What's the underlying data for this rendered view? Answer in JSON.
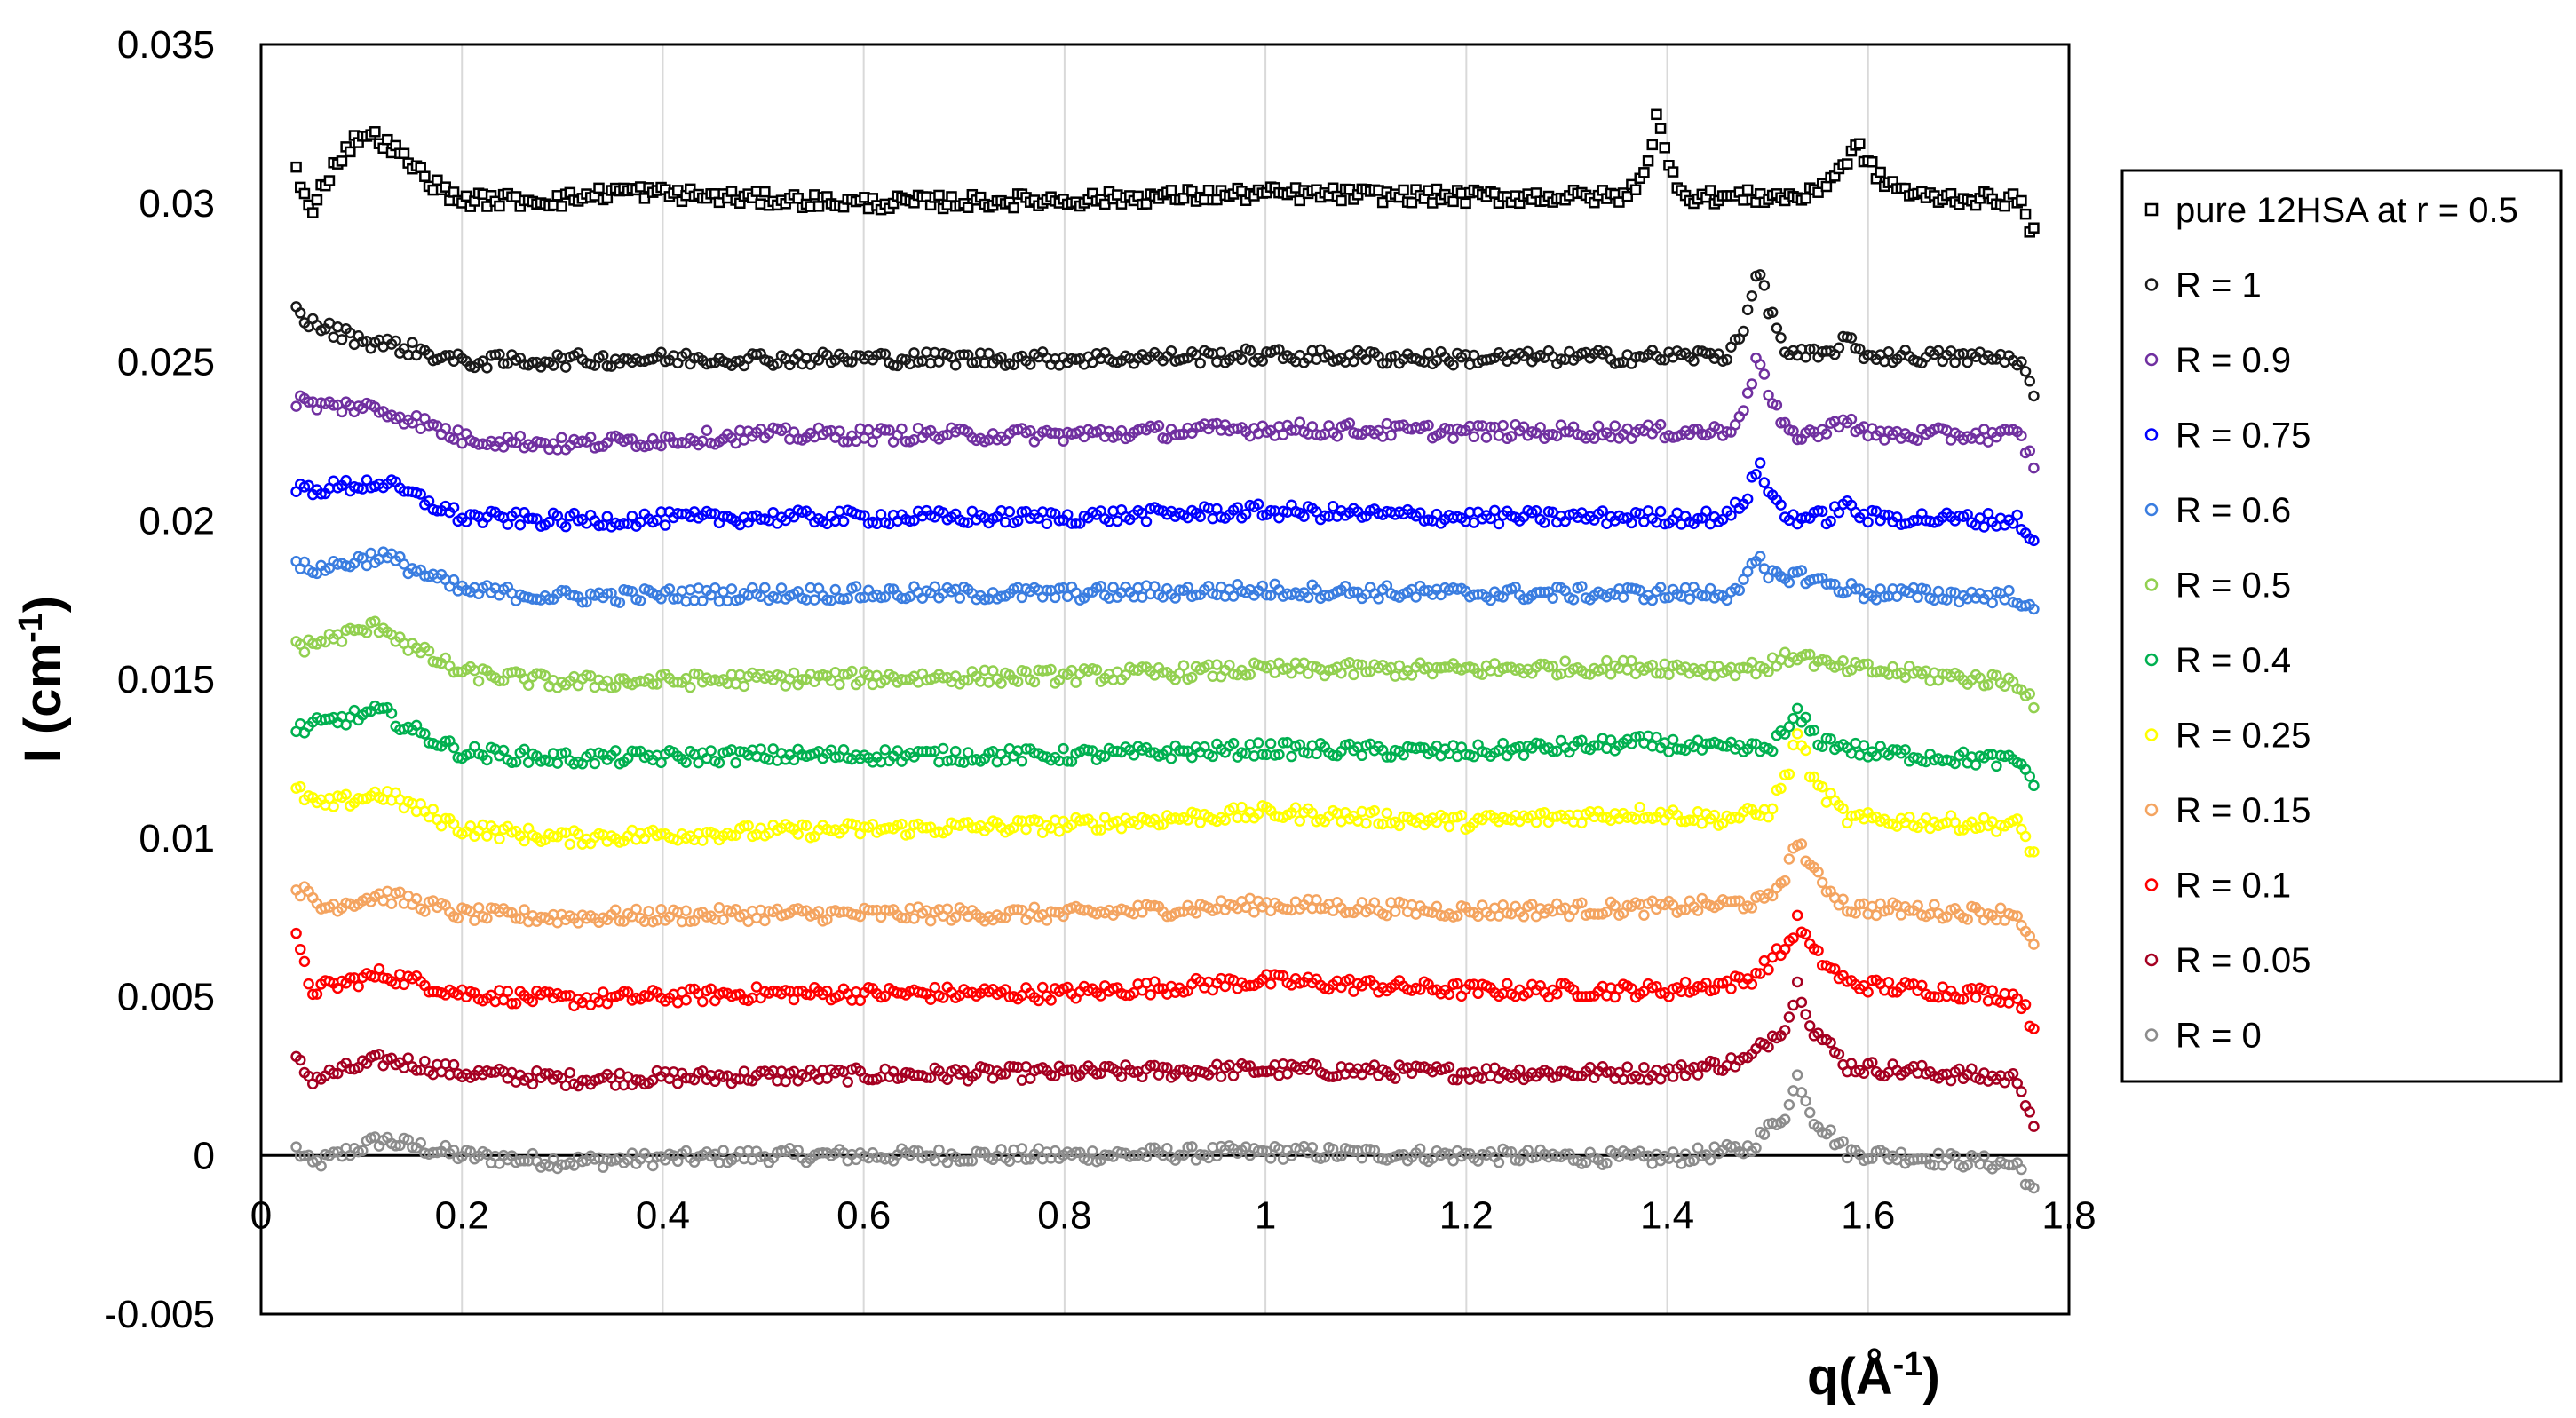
{
  "chart_data": {
    "type": "scatter",
    "title": "",
    "xlabel": {
      "base": "q(Å",
      "sup": "-1",
      "close": ")"
    },
    "ylabel": {
      "base": "I (cm",
      "sup": "-1",
      "close": ")"
    },
    "xlim": [
      0,
      1.8
    ],
    "ylim": [
      -0.005,
      0.035
    ],
    "x_ticks": [
      0,
      0.2,
      0.4,
      0.6,
      0.8,
      1,
      1.2,
      1.4,
      1.6,
      1.8
    ],
    "x_tick_labels": [
      "0",
      "0.2",
      "0.4",
      "0.6",
      "0.8",
      "1",
      "1.2",
      "1.4",
      "1.6",
      "1.8"
    ],
    "y_ticks": [
      -0.005,
      0,
      0.005,
      0.01,
      0.015,
      0.02,
      0.025,
      0.03,
      0.035
    ],
    "y_tick_labels": [
      "-0.005",
      "0",
      "0.005",
      "0.01",
      "0.015",
      "0.02",
      "0.025",
      "0.03",
      "0.035"
    ],
    "grid": "vertical",
    "legend_position": "right",
    "q_range": [
      0.035,
      1.765
    ],
    "series": [
      {
        "name": "pure 12HSA at r = 0.5",
        "marker": "square",
        "color": "#000000",
        "baseline": 0.0302,
        "points": [
          [
            0.035,
            0.031
          ],
          [
            0.04,
            0.0303
          ],
          [
            0.05,
            0.0298
          ],
          [
            0.06,
            0.0305
          ],
          [
            0.08,
            0.0315
          ],
          [
            0.1,
            0.0322
          ],
          [
            0.12,
            0.032
          ],
          [
            0.15,
            0.0312
          ],
          [
            0.18,
            0.0304
          ],
          [
            0.2,
            0.0301
          ],
          [
            0.3,
            0.0301
          ],
          [
            0.36,
            0.0304
          ],
          [
            0.45,
            0.0302
          ],
          [
            0.6,
            0.03
          ],
          [
            0.8,
            0.0301
          ],
          [
            1.0,
            0.0303
          ],
          [
            1.2,
            0.0302
          ],
          [
            1.36,
            0.0302
          ],
          [
            1.38,
            0.0312
          ],
          [
            1.39,
            0.0328
          ],
          [
            1.4,
            0.0312
          ],
          [
            1.42,
            0.0302
          ],
          [
            1.54,
            0.0302
          ],
          [
            1.57,
            0.031
          ],
          [
            1.59,
            0.0318
          ],
          [
            1.61,
            0.0308
          ],
          [
            1.65,
            0.0302
          ],
          [
            1.75,
            0.0301
          ],
          [
            1.765,
            0.029
          ]
        ]
      },
      {
        "name": "R = 1",
        "marker": "circle",
        "color": "#1a1a1a",
        "baseline": 0.0251,
        "points": [
          [
            0.035,
            0.0266
          ],
          [
            0.05,
            0.0262
          ],
          [
            0.1,
            0.0257
          ],
          [
            0.15,
            0.0254
          ],
          [
            0.2,
            0.025
          ],
          [
            0.4,
            0.0251
          ],
          [
            0.8,
            0.0251
          ],
          [
            1.0,
            0.0252
          ],
          [
            1.2,
            0.0251
          ],
          [
            1.46,
            0.0252
          ],
          [
            1.48,
            0.0264
          ],
          [
            1.49,
            0.028
          ],
          [
            1.5,
            0.0268
          ],
          [
            1.52,
            0.0252
          ],
          [
            1.56,
            0.0252
          ],
          [
            1.575,
            0.0257
          ],
          [
            1.6,
            0.0252
          ],
          [
            1.75,
            0.0251
          ],
          [
            1.765,
            0.024
          ]
        ]
      },
      {
        "name": "R = 0.9",
        "marker": "circle",
        "color": "#7030a0",
        "baseline": 0.0227,
        "points": [
          [
            0.035,
            0.0238
          ],
          [
            0.06,
            0.0236
          ],
          [
            0.1,
            0.0236
          ],
          [
            0.15,
            0.0232
          ],
          [
            0.2,
            0.0226
          ],
          [
            0.3,
            0.0224
          ],
          [
            0.5,
            0.0227
          ],
          [
            0.8,
            0.0227
          ],
          [
            1.0,
            0.0229
          ],
          [
            1.2,
            0.0228
          ],
          [
            1.46,
            0.0228
          ],
          [
            1.48,
            0.0238
          ],
          [
            1.49,
            0.0254
          ],
          [
            1.5,
            0.024
          ],
          [
            1.52,
            0.0227
          ],
          [
            1.56,
            0.0228
          ],
          [
            1.575,
            0.0233
          ],
          [
            1.6,
            0.0227
          ],
          [
            1.75,
            0.0227
          ],
          [
            1.765,
            0.0218
          ]
        ]
      },
      {
        "name": "R = 0.75",
        "marker": "circle",
        "color": "#0000ff",
        "baseline": 0.0201,
        "points": [
          [
            0.035,
            0.021
          ],
          [
            0.06,
            0.021
          ],
          [
            0.12,
            0.0212
          ],
          [
            0.15,
            0.0208
          ],
          [
            0.2,
            0.0201
          ],
          [
            0.3,
            0.02
          ],
          [
            0.5,
            0.0201
          ],
          [
            0.8,
            0.0201
          ],
          [
            1.0,
            0.0203
          ],
          [
            1.2,
            0.0201
          ],
          [
            1.46,
            0.0201
          ],
          [
            1.48,
            0.0208
          ],
          [
            1.49,
            0.0218
          ],
          [
            1.5,
            0.021
          ],
          [
            1.52,
            0.0201
          ],
          [
            1.56,
            0.0201
          ],
          [
            1.575,
            0.0205
          ],
          [
            1.6,
            0.0201
          ],
          [
            1.75,
            0.02
          ],
          [
            1.765,
            0.0193
          ]
        ]
      },
      {
        "name": "R = 0.6",
        "marker": "circle",
        "color": "#3a7de0",
        "baseline": 0.0177,
        "points": [
          [
            0.035,
            0.0185
          ],
          [
            0.06,
            0.0185
          ],
          [
            0.12,
            0.0189
          ],
          [
            0.15,
            0.0185
          ],
          [
            0.2,
            0.0178
          ],
          [
            0.3,
            0.0176
          ],
          [
            0.5,
            0.0177
          ],
          [
            0.8,
            0.0177
          ],
          [
            1.0,
            0.0178
          ],
          [
            1.2,
            0.0177
          ],
          [
            1.46,
            0.0177
          ],
          [
            1.48,
            0.0182
          ],
          [
            1.49,
            0.0188
          ],
          [
            1.5,
            0.0182
          ],
          [
            1.53,
            0.0183
          ],
          [
            1.56,
            0.018
          ],
          [
            1.6,
            0.0177
          ],
          [
            1.75,
            0.0176
          ],
          [
            1.765,
            0.017
          ]
        ]
      },
      {
        "name": "R = 0.5",
        "marker": "circle",
        "color": "#92d050",
        "baseline": 0.0151,
        "points": [
          [
            0.035,
            0.016
          ],
          [
            0.06,
            0.0162
          ],
          [
            0.12,
            0.0167
          ],
          [
            0.15,
            0.016
          ],
          [
            0.2,
            0.0152
          ],
          [
            0.3,
            0.0149
          ],
          [
            0.5,
            0.015
          ],
          [
            0.8,
            0.0151
          ],
          [
            1.0,
            0.0153
          ],
          [
            1.2,
            0.0153
          ],
          [
            1.38,
            0.0154
          ],
          [
            1.45,
            0.0153
          ],
          [
            1.5,
            0.0154
          ],
          [
            1.53,
            0.0158
          ],
          [
            1.56,
            0.0154
          ],
          [
            1.75,
            0.0149
          ],
          [
            1.765,
            0.0143
          ]
        ]
      },
      {
        "name": "R = 0.4",
        "marker": "circle",
        "color": "#00b050",
        "baseline": 0.0126,
        "points": [
          [
            0.035,
            0.0134
          ],
          [
            0.06,
            0.0136
          ],
          [
            0.12,
            0.014
          ],
          [
            0.15,
            0.0134
          ],
          [
            0.2,
            0.0127
          ],
          [
            0.3,
            0.0125
          ],
          [
            0.5,
            0.0126
          ],
          [
            0.8,
            0.0126
          ],
          [
            1.0,
            0.0128
          ],
          [
            1.2,
            0.0127
          ],
          [
            1.38,
            0.013
          ],
          [
            1.45,
            0.0128
          ],
          [
            1.5,
            0.0128
          ],
          [
            1.52,
            0.0134
          ],
          [
            1.53,
            0.0139
          ],
          [
            1.55,
            0.0131
          ],
          [
            1.6,
            0.0127
          ],
          [
            1.75,
            0.0124
          ],
          [
            1.765,
            0.0118
          ]
        ]
      },
      {
        "name": "R = 0.25",
        "marker": "circle",
        "color": "#ffff00",
        "baseline": 0.0104,
        "points": [
          [
            0.035,
            0.0115
          ],
          [
            0.06,
            0.011
          ],
          [
            0.12,
            0.0114
          ],
          [
            0.15,
            0.011
          ],
          [
            0.2,
            0.0103
          ],
          [
            0.3,
            0.01
          ],
          [
            0.5,
            0.0102
          ],
          [
            0.8,
            0.0104
          ],
          [
            1.0,
            0.0108
          ],
          [
            1.2,
            0.0105
          ],
          [
            1.38,
            0.0108
          ],
          [
            1.45,
            0.0106
          ],
          [
            1.5,
            0.0108
          ],
          [
            1.52,
            0.012
          ],
          [
            1.53,
            0.0134
          ],
          [
            1.545,
            0.0118
          ],
          [
            1.58,
            0.0106
          ],
          [
            1.75,
            0.0104
          ],
          [
            1.765,
            0.0095
          ]
        ]
      },
      {
        "name": "R = 0.15",
        "marker": "circle",
        "color": "#f4a460",
        "baseline": 0.0077,
        "points": [
          [
            0.035,
            0.0085
          ],
          [
            0.06,
            0.0078
          ],
          [
            0.12,
            0.0082
          ],
          [
            0.15,
            0.008
          ],
          [
            0.2,
            0.0076
          ],
          [
            0.3,
            0.0075
          ],
          [
            0.5,
            0.0076
          ],
          [
            0.8,
            0.0076
          ],
          [
            1.0,
            0.0079
          ],
          [
            1.2,
            0.0077
          ],
          [
            1.4,
            0.0078
          ],
          [
            1.5,
            0.008
          ],
          [
            1.52,
            0.009
          ],
          [
            1.53,
            0.01
          ],
          [
            1.545,
            0.0089
          ],
          [
            1.58,
            0.0078
          ],
          [
            1.75,
            0.0076
          ],
          [
            1.765,
            0.0065
          ]
        ]
      },
      {
        "name": "R = 0.1",
        "marker": "circle",
        "color": "#ff0000",
        "baseline": 0.0052,
        "points": [
          [
            0.035,
            0.0068
          ],
          [
            0.05,
            0.0052
          ],
          [
            0.12,
            0.0057
          ],
          [
            0.15,
            0.0055
          ],
          [
            0.2,
            0.0051
          ],
          [
            0.3,
            0.0049
          ],
          [
            0.5,
            0.0051
          ],
          [
            0.8,
            0.0051
          ],
          [
            1.0,
            0.0055
          ],
          [
            1.2,
            0.0052
          ],
          [
            1.4,
            0.0052
          ],
          [
            1.48,
            0.0055
          ],
          [
            1.52,
            0.0066
          ],
          [
            1.53,
            0.0074
          ],
          [
            1.545,
            0.0064
          ],
          [
            1.58,
            0.0054
          ],
          [
            1.75,
            0.005
          ],
          [
            1.765,
            0.004
          ]
        ]
      },
      {
        "name": "R = 0.05",
        "marker": "circle",
        "color": "#a50021",
        "baseline": 0.0026,
        "points": [
          [
            0.035,
            0.003
          ],
          [
            0.05,
            0.0024
          ],
          [
            0.12,
            0.003
          ],
          [
            0.15,
            0.0029
          ],
          [
            0.2,
            0.0026
          ],
          [
            0.3,
            0.0024
          ],
          [
            0.5,
            0.0025
          ],
          [
            0.8,
            0.0026
          ],
          [
            1.0,
            0.0027
          ],
          [
            1.2,
            0.0026
          ],
          [
            1.4,
            0.0026
          ],
          [
            1.48,
            0.003
          ],
          [
            1.52,
            0.0042
          ],
          [
            1.53,
            0.0054
          ],
          [
            1.545,
            0.004
          ],
          [
            1.58,
            0.0028
          ],
          [
            1.75,
            0.0024
          ],
          [
            1.765,
            0.001
          ]
        ]
      },
      {
        "name": "R = 0",
        "marker": "circle",
        "color": "#8c8c8c",
        "baseline": 0.0,
        "points": [
          [
            0.035,
            0.0002
          ],
          [
            0.05,
            -0.0003
          ],
          [
            0.12,
            0.0005
          ],
          [
            0.15,
            0.0003
          ],
          [
            0.2,
            0.0
          ],
          [
            0.3,
            -0.0002
          ],
          [
            0.5,
            0.0
          ],
          [
            0.8,
            0.0
          ],
          [
            1.0,
            0.0001
          ],
          [
            1.2,
            0.0
          ],
          [
            1.4,
            -0.0001
          ],
          [
            1.48,
            0.0002
          ],
          [
            1.52,
            0.0014
          ],
          [
            1.53,
            0.0025
          ],
          [
            1.545,
            0.0012
          ],
          [
            1.58,
            0.0001
          ],
          [
            1.75,
            -0.0003
          ],
          [
            1.765,
            -0.0012
          ]
        ]
      }
    ]
  }
}
